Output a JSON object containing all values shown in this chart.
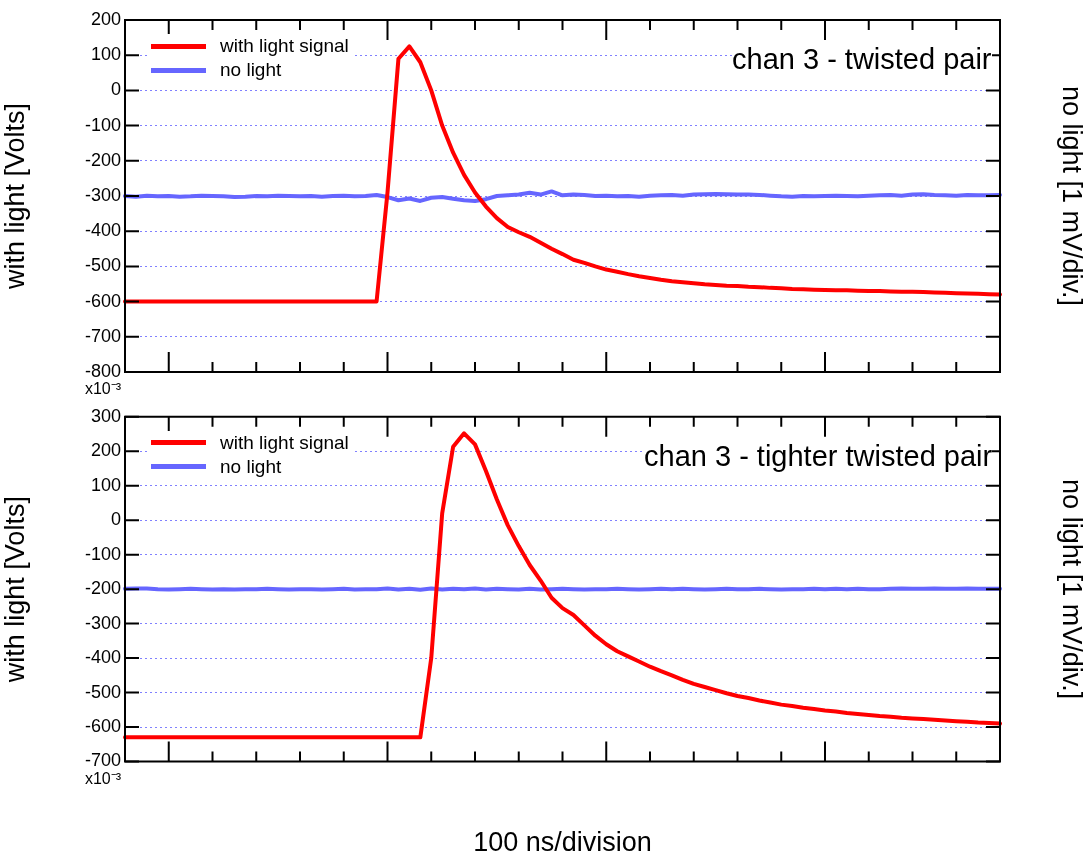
{
  "chart_data": [
    {
      "type": "line",
      "title": "chan 3 - twisted pair",
      "ylabel": "with light [Volts]",
      "y2label": "no light [1 mV/div.]",
      "annotations": [
        "x10⁻³"
      ],
      "categories": [
        null,
        null,
        null,
        null,
        null,
        null,
        null,
        null,
        null,
        null,
        null,
        null,
        null,
        null,
        null,
        null,
        null,
        null,
        null,
        null,
        null,
        null,
        null,
        null,
        null,
        null,
        null,
        null,
        null,
        null,
        null,
        null,
        null,
        null,
        null,
        null,
        null,
        null,
        null,
        null,
        null,
        null,
        null,
        null,
        null,
        null,
        null,
        null,
        null,
        null,
        null,
        null,
        null,
        null,
        null,
        null,
        null,
        null,
        null,
        null,
        null,
        null,
        null,
        null,
        null,
        null,
        null,
        null,
        null,
        null,
        null,
        null,
        null,
        null,
        null,
        null,
        null,
        null,
        null,
        null,
        null
      ],
      "series": [
        {
          "name": "with light signal",
          "color": "#ff0000",
          "values": [
            -600,
            -600,
            -600,
            -600,
            -600,
            -600,
            -600,
            -600,
            -600,
            -600,
            -600,
            -600,
            -600,
            -600,
            -600,
            -600,
            -600,
            -600,
            -600,
            -600,
            -600,
            -600,
            -600,
            -600,
            -290,
            90,
            125,
            80,
            0,
            -100,
            -177,
            -240,
            -290,
            -330,
            -363,
            -388,
            -403,
            -416,
            -433,
            -450,
            -465,
            -481,
            -490,
            -500,
            -509,
            -515,
            -522,
            -528,
            -533,
            -538,
            -542,
            -545,
            -548,
            -551,
            -553,
            -555,
            -556,
            -558,
            -559,
            -561,
            -562,
            -564,
            -565,
            -566,
            -567,
            -568,
            -568,
            -569,
            -570,
            -570,
            -571,
            -572,
            -572,
            -573,
            -574,
            -575,
            -576,
            -577,
            -578,
            -579,
            -580
          ]
        },
        {
          "name": "no light",
          "color": "#6666ff",
          "values": [
            -300,
            -302,
            -299,
            -301,
            -300,
            -302,
            -301,
            -299,
            -300,
            -301,
            -303,
            -302,
            -300,
            -301,
            -299,
            -300,
            -301,
            -300,
            -302,
            -300,
            -299,
            -301,
            -300,
            -297,
            -303,
            -312,
            -307,
            -314,
            -305,
            -303,
            -308,
            -312,
            -314,
            -309,
            -300,
            -298,
            -296,
            -291,
            -296,
            -287,
            -298,
            -296,
            -297,
            -300,
            -299,
            -301,
            -300,
            -302,
            -299,
            -298,
            -297,
            -299,
            -296,
            -295,
            -294,
            -295,
            -296,
            -296,
            -297,
            -299,
            -301,
            -302,
            -300,
            -301,
            -300,
            -299,
            -300,
            -301,
            -299,
            -298,
            -297,
            -299,
            -296,
            -295,
            -297,
            -298,
            -299,
            -297,
            -298,
            -298,
            -297
          ]
        }
      ],
      "ylim": [
        -800,
        200
      ],
      "yticks": [
        -800,
        -700,
        -600,
        -500,
        -400,
        -300,
        -200,
        -100,
        0,
        100,
        200
      ],
      "grid": "y",
      "legend": "top left",
      "tick_labels": "y",
      "line_style": "solid"
    },
    {
      "type": "line",
      "title": "chan 3 - tighter twisted pair",
      "xlabel": "100 ns/division",
      "ylabel": "with light [Volts]",
      "y2label": "no light [1 mV/div.]",
      "annotations": [
        "x10⁻³"
      ],
      "categories": [
        null,
        null,
        null,
        null,
        null,
        null,
        null,
        null,
        null,
        null,
        null,
        null,
        null,
        null,
        null,
        null,
        null,
        null,
        null,
        null,
        null,
        null,
        null,
        null,
        null,
        null,
        null,
        null,
        null,
        null,
        null,
        null,
        null,
        null,
        null,
        null,
        null,
        null,
        null,
        null,
        null,
        null,
        null,
        null,
        null,
        null,
        null,
        null,
        null,
        null,
        null,
        null,
        null,
        null,
        null,
        null,
        null,
        null,
        null,
        null,
        null,
        null,
        null,
        null,
        null,
        null,
        null,
        null,
        null,
        null,
        null,
        null,
        null,
        null,
        null,
        null,
        null,
        null,
        null,
        null,
        null
      ],
      "series": [
        {
          "name": "with light signal",
          "color": "#ff0000",
          "values": [
            -630,
            -630,
            -630,
            -630,
            -630,
            -630,
            -630,
            -630,
            -630,
            -630,
            -630,
            -630,
            -630,
            -630,
            -630,
            -630,
            -630,
            -630,
            -630,
            -630,
            -630,
            -630,
            -630,
            -630,
            -630,
            -630,
            -630,
            -630,
            -400,
            20,
            213,
            252,
            220,
            143,
            60,
            -15,
            -75,
            -130,
            -175,
            -225,
            -255,
            -275,
            -305,
            -335,
            -360,
            -380,
            -395,
            -410,
            -425,
            -438,
            -450,
            -463,
            -475,
            -484,
            -493,
            -502,
            -510,
            -516,
            -523,
            -529,
            -535,
            -539,
            -544,
            -548,
            -552,
            -555,
            -559,
            -562,
            -565,
            -568,
            -570,
            -573,
            -575,
            -577,
            -579,
            -581,
            -583,
            -585,
            -587,
            -588,
            -590
          ]
        },
        {
          "name": "no light",
          "color": "#6666ff",
          "values": [
            -199,
            -198,
            -198,
            -200,
            -201,
            -200,
            -199,
            -200,
            -201,
            -200,
            -201,
            -200,
            -200,
            -199,
            -200,
            -201,
            -200,
            -200,
            -201,
            -200,
            -199,
            -201,
            -200,
            -200,
            -198,
            -201,
            -199,
            -202,
            -198,
            -201,
            -199,
            -200,
            -198,
            -201,
            -199,
            -200,
            -201,
            -199,
            -201,
            -200,
            -199,
            -200,
            -201,
            -200,
            -200,
            -199,
            -200,
            -201,
            -200,
            -199,
            -200,
            -199,
            -200,
            -201,
            -200,
            -199,
            -200,
            -200,
            -199,
            -200,
            -201,
            -200,
            -200,
            -199,
            -200,
            -199,
            -200,
            -199,
            -200,
            -200,
            -199,
            -198,
            -199,
            -199,
            -198,
            -199,
            -199,
            -198,
            -199,
            -199,
            -199
          ]
        }
      ],
      "ylim": [
        -700,
        300
      ],
      "yticks": [
        -700,
        -600,
        -500,
        -400,
        -300,
        -200,
        -100,
        0,
        100,
        200,
        300
      ],
      "grid": "y",
      "legend": "top left",
      "tick_labels": "y",
      "line_style": "solid"
    }
  ]
}
